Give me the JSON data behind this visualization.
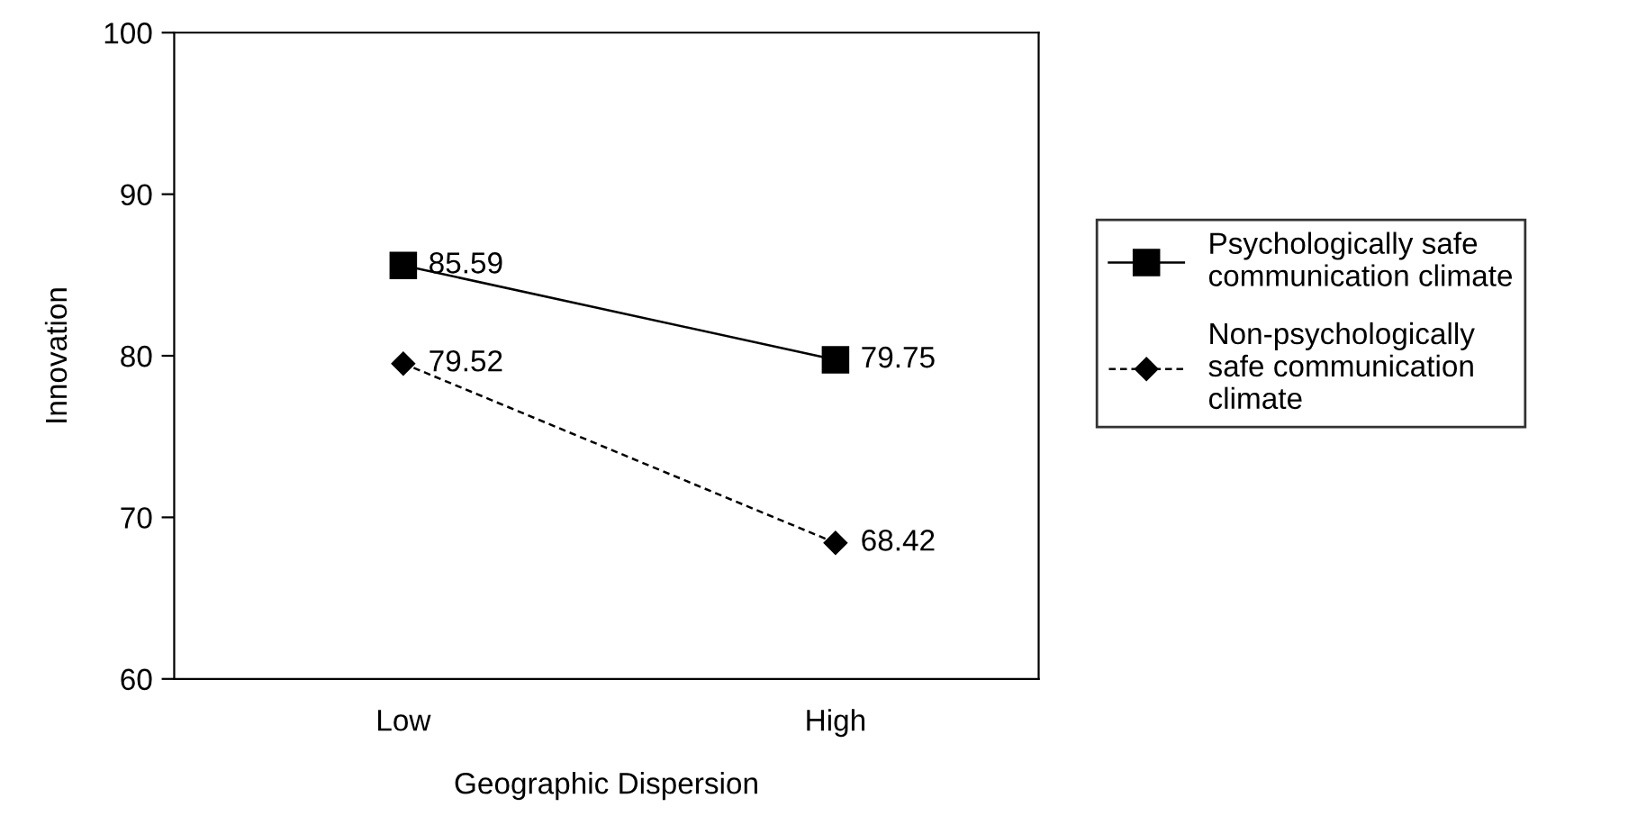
{
  "chart_data": {
    "type": "line",
    "xlabel": "Geographic Dispersion",
    "ylabel": "Innovation",
    "categories": [
      "Low",
      "High"
    ],
    "series": [
      {
        "name": "Psychologically safe\ncommunication climate",
        "color": "#000000",
        "values": [
          85.59,
          79.75
        ],
        "marker": "square",
        "line_style": "solid"
      },
      {
        "name": "Non-psychologically\nsafe communication\nclimate",
        "color": "#000000",
        "values": [
          79.52,
          68.42
        ],
        "marker": "diamond",
        "line_style": "dashed"
      }
    ],
    "ylim": [
      60,
      100
    ],
    "yticks": [
      60,
      70,
      80,
      90,
      100
    ],
    "grid": false,
    "legend": "right",
    "data_labels": true
  }
}
